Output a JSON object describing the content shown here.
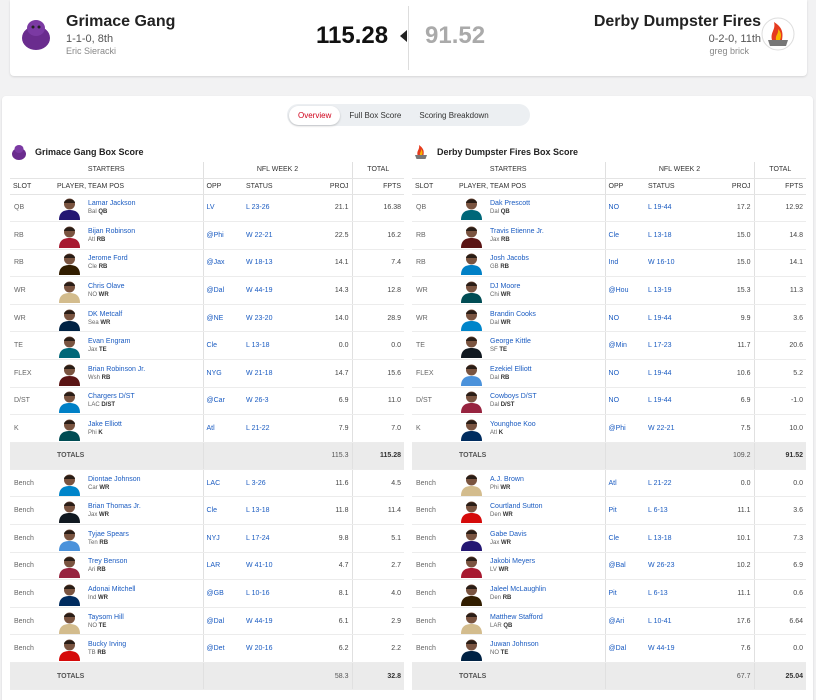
{
  "matchup": {
    "home": {
      "name": "Grimace Gang",
      "record": "1-1-0, 8th",
      "owner": "Eric Sieracki",
      "score": "115.28"
    },
    "away": {
      "name": "Derby Dumpster Fires",
      "record": "0-2-0, 11th",
      "owner": "greg brick",
      "score": "91.52"
    }
  },
  "tabs": [
    "Overview",
    "Full Box Score",
    "Scoring Breakdown"
  ],
  "headers": {
    "starters": "STARTERS",
    "week": "NFL WEEK 2",
    "total": "TOTAL",
    "slot": "SLOT",
    "player": "PLAYER, TEAM POS",
    "opp": "OPP",
    "status": "STATUS",
    "proj": "PROJ",
    "fpts": "FPTS",
    "totals": "TOTALS"
  },
  "boxes": [
    {
      "title": "Grimace Gang Box Score",
      "starters": [
        {
          "slot": "QB",
          "name": "Lamar Jackson",
          "team": "Bal",
          "pos": "QB",
          "opp": "LV",
          "status": "L 23-26",
          "proj": "21.1",
          "fpts": "16.38"
        },
        {
          "slot": "RB",
          "name": "Bijan Robinson",
          "team": "Atl",
          "pos": "RB",
          "opp": "@Phi",
          "status": "W 22-21",
          "proj": "22.5",
          "fpts": "16.2"
        },
        {
          "slot": "RB",
          "name": "Jerome Ford",
          "team": "Cle",
          "pos": "RB",
          "opp": "@Jax",
          "status": "W 18-13",
          "proj": "14.1",
          "fpts": "7.4"
        },
        {
          "slot": "WR",
          "name": "Chris Olave",
          "team": "NO",
          "pos": "WR",
          "opp": "@Dal",
          "status": "W 44-19",
          "proj": "14.3",
          "fpts": "12.8"
        },
        {
          "slot": "WR",
          "name": "DK Metcalf",
          "team": "Sea",
          "pos": "WR",
          "opp": "@NE",
          "status": "W 23-20",
          "proj": "14.0",
          "fpts": "28.9"
        },
        {
          "slot": "TE",
          "name": "Evan Engram",
          "team": "Jax",
          "pos": "TE",
          "opp": "Cle",
          "status": "L 13-18",
          "proj": "0.0",
          "fpts": "0.0"
        },
        {
          "slot": "FLEX",
          "name": "Brian Robinson Jr.",
          "team": "Wsh",
          "pos": "RB",
          "opp": "NYG",
          "status": "W 21-18",
          "proj": "14.7",
          "fpts": "15.6"
        },
        {
          "slot": "D/ST",
          "name": "Chargers D/ST",
          "team": "LAC",
          "pos": "D/ST",
          "opp": "@Car",
          "status": "W 26-3",
          "proj": "6.9",
          "fpts": "11.0"
        },
        {
          "slot": "K",
          "name": "Jake Elliott",
          "team": "Phi",
          "pos": "K",
          "opp": "Atl",
          "status": "L 21-22",
          "proj": "7.9",
          "fpts": "7.0"
        }
      ],
      "starters_total": {
        "proj": "115.3",
        "fpts": "115.28"
      },
      "bench": [
        {
          "slot": "Bench",
          "name": "Diontae Johnson",
          "team": "Car",
          "pos": "WR",
          "opp": "LAC",
          "status": "L 3-26",
          "proj": "11.6",
          "fpts": "4.5"
        },
        {
          "slot": "Bench",
          "name": "Brian Thomas Jr.",
          "team": "Jax",
          "pos": "WR",
          "opp": "Cle",
          "status": "L 13-18",
          "proj": "11.8",
          "fpts": "11.4"
        },
        {
          "slot": "Bench",
          "name": "Tyjae Spears",
          "team": "Ten",
          "pos": "RB",
          "opp": "NYJ",
          "status": "L 17-24",
          "proj": "9.8",
          "fpts": "5.1"
        },
        {
          "slot": "Bench",
          "name": "Trey Benson",
          "team": "Ari",
          "pos": "RB",
          "opp": "LAR",
          "status": "W 41-10",
          "proj": "4.7",
          "fpts": "2.7"
        },
        {
          "slot": "Bench",
          "name": "Adonai Mitchell",
          "team": "Ind",
          "pos": "WR",
          "opp": "@GB",
          "status": "L 10-16",
          "proj": "8.1",
          "fpts": "4.0"
        },
        {
          "slot": "Bench",
          "name": "Taysom Hill",
          "team": "NO",
          "pos": "TE",
          "opp": "@Dal",
          "status": "W 44-19",
          "proj": "6.1",
          "fpts": "2.9"
        },
        {
          "slot": "Bench",
          "name": "Bucky Irving",
          "team": "TB",
          "pos": "RB",
          "opp": "@Det",
          "status": "W 20-16",
          "proj": "6.2",
          "fpts": "2.2"
        }
      ],
      "bench_total": {
        "proj": "58.3",
        "fpts": "32.8"
      }
    },
    {
      "title": "Derby Dumpster Fires Box Score",
      "starters": [
        {
          "slot": "QB",
          "name": "Dak Prescott",
          "team": "Dal",
          "pos": "QB",
          "opp": "NO",
          "status": "L 19-44",
          "proj": "17.2",
          "fpts": "12.92"
        },
        {
          "slot": "RB",
          "name": "Travis Etienne Jr.",
          "team": "Jax",
          "pos": "RB",
          "opp": "Cle",
          "status": "L 13-18",
          "proj": "15.0",
          "fpts": "14.8"
        },
        {
          "slot": "RB",
          "name": "Josh Jacobs",
          "team": "GB",
          "pos": "RB",
          "opp": "Ind",
          "status": "W 16-10",
          "proj": "15.0",
          "fpts": "14.1"
        },
        {
          "slot": "WR",
          "name": "DJ Moore",
          "team": "Chi",
          "pos": "WR",
          "opp": "@Hou",
          "status": "L 13-19",
          "proj": "15.3",
          "fpts": "11.3"
        },
        {
          "slot": "WR",
          "name": "Brandin Cooks",
          "team": "Dal",
          "pos": "WR",
          "opp": "NO",
          "status": "L 19-44",
          "proj": "9.9",
          "fpts": "3.6"
        },
        {
          "slot": "TE",
          "name": "George Kittle",
          "team": "SF",
          "pos": "TE",
          "opp": "@Min",
          "status": "L 17-23",
          "proj": "11.7",
          "fpts": "20.6"
        },
        {
          "slot": "FLEX",
          "name": "Ezekiel Elliott",
          "team": "Dal",
          "pos": "RB",
          "opp": "NO",
          "status": "L 19-44",
          "proj": "10.6",
          "fpts": "5.2"
        },
        {
          "slot": "D/ST",
          "name": "Cowboys D/ST",
          "team": "Dal",
          "pos": "D/ST",
          "opp": "NO",
          "status": "L 19-44",
          "proj": "6.9",
          "fpts": "-1.0"
        },
        {
          "slot": "K",
          "name": "Younghoe Koo",
          "team": "Atl",
          "pos": "K",
          "opp": "@Phi",
          "status": "W 22-21",
          "proj": "7.5",
          "fpts": "10.0"
        }
      ],
      "starters_total": {
        "proj": "109.2",
        "fpts": "91.52"
      },
      "bench": [
        {
          "slot": "Bench",
          "name": "A.J. Brown",
          "team": "Phi",
          "pos": "WR",
          "opp": "Atl",
          "status": "L 21-22",
          "proj": "0.0",
          "fpts": "0.0"
        },
        {
          "slot": "Bench",
          "name": "Courtland Sutton",
          "team": "Den",
          "pos": "WR",
          "opp": "Pit",
          "status": "L 6-13",
          "proj": "11.1",
          "fpts": "3.6"
        },
        {
          "slot": "Bench",
          "name": "Gabe Davis",
          "team": "Jax",
          "pos": "WR",
          "opp": "Cle",
          "status": "L 13-18",
          "proj": "10.1",
          "fpts": "7.3"
        },
        {
          "slot": "Bench",
          "name": "Jakobi Meyers",
          "team": "LV",
          "pos": "WR",
          "opp": "@Bal",
          "status": "W 26-23",
          "proj": "10.2",
          "fpts": "6.9"
        },
        {
          "slot": "Bench",
          "name": "Jaleel McLaughlin",
          "team": "Den",
          "pos": "RB",
          "opp": "Pit",
          "status": "L 6-13",
          "proj": "11.1",
          "fpts": "0.6"
        },
        {
          "slot": "Bench",
          "name": "Matthew Stafford",
          "team": "LAR",
          "pos": "QB",
          "opp": "@Ari",
          "status": "L 10-41",
          "proj": "17.6",
          "fpts": "6.64"
        },
        {
          "slot": "Bench",
          "name": "Juwan Johnson",
          "team": "NO",
          "pos": "TE",
          "opp": "@Dal",
          "status": "W 44-19",
          "proj": "7.6",
          "fpts": "0.0"
        }
      ],
      "bench_total": {
        "proj": "67.7",
        "fpts": "25.04"
      }
    }
  ]
}
